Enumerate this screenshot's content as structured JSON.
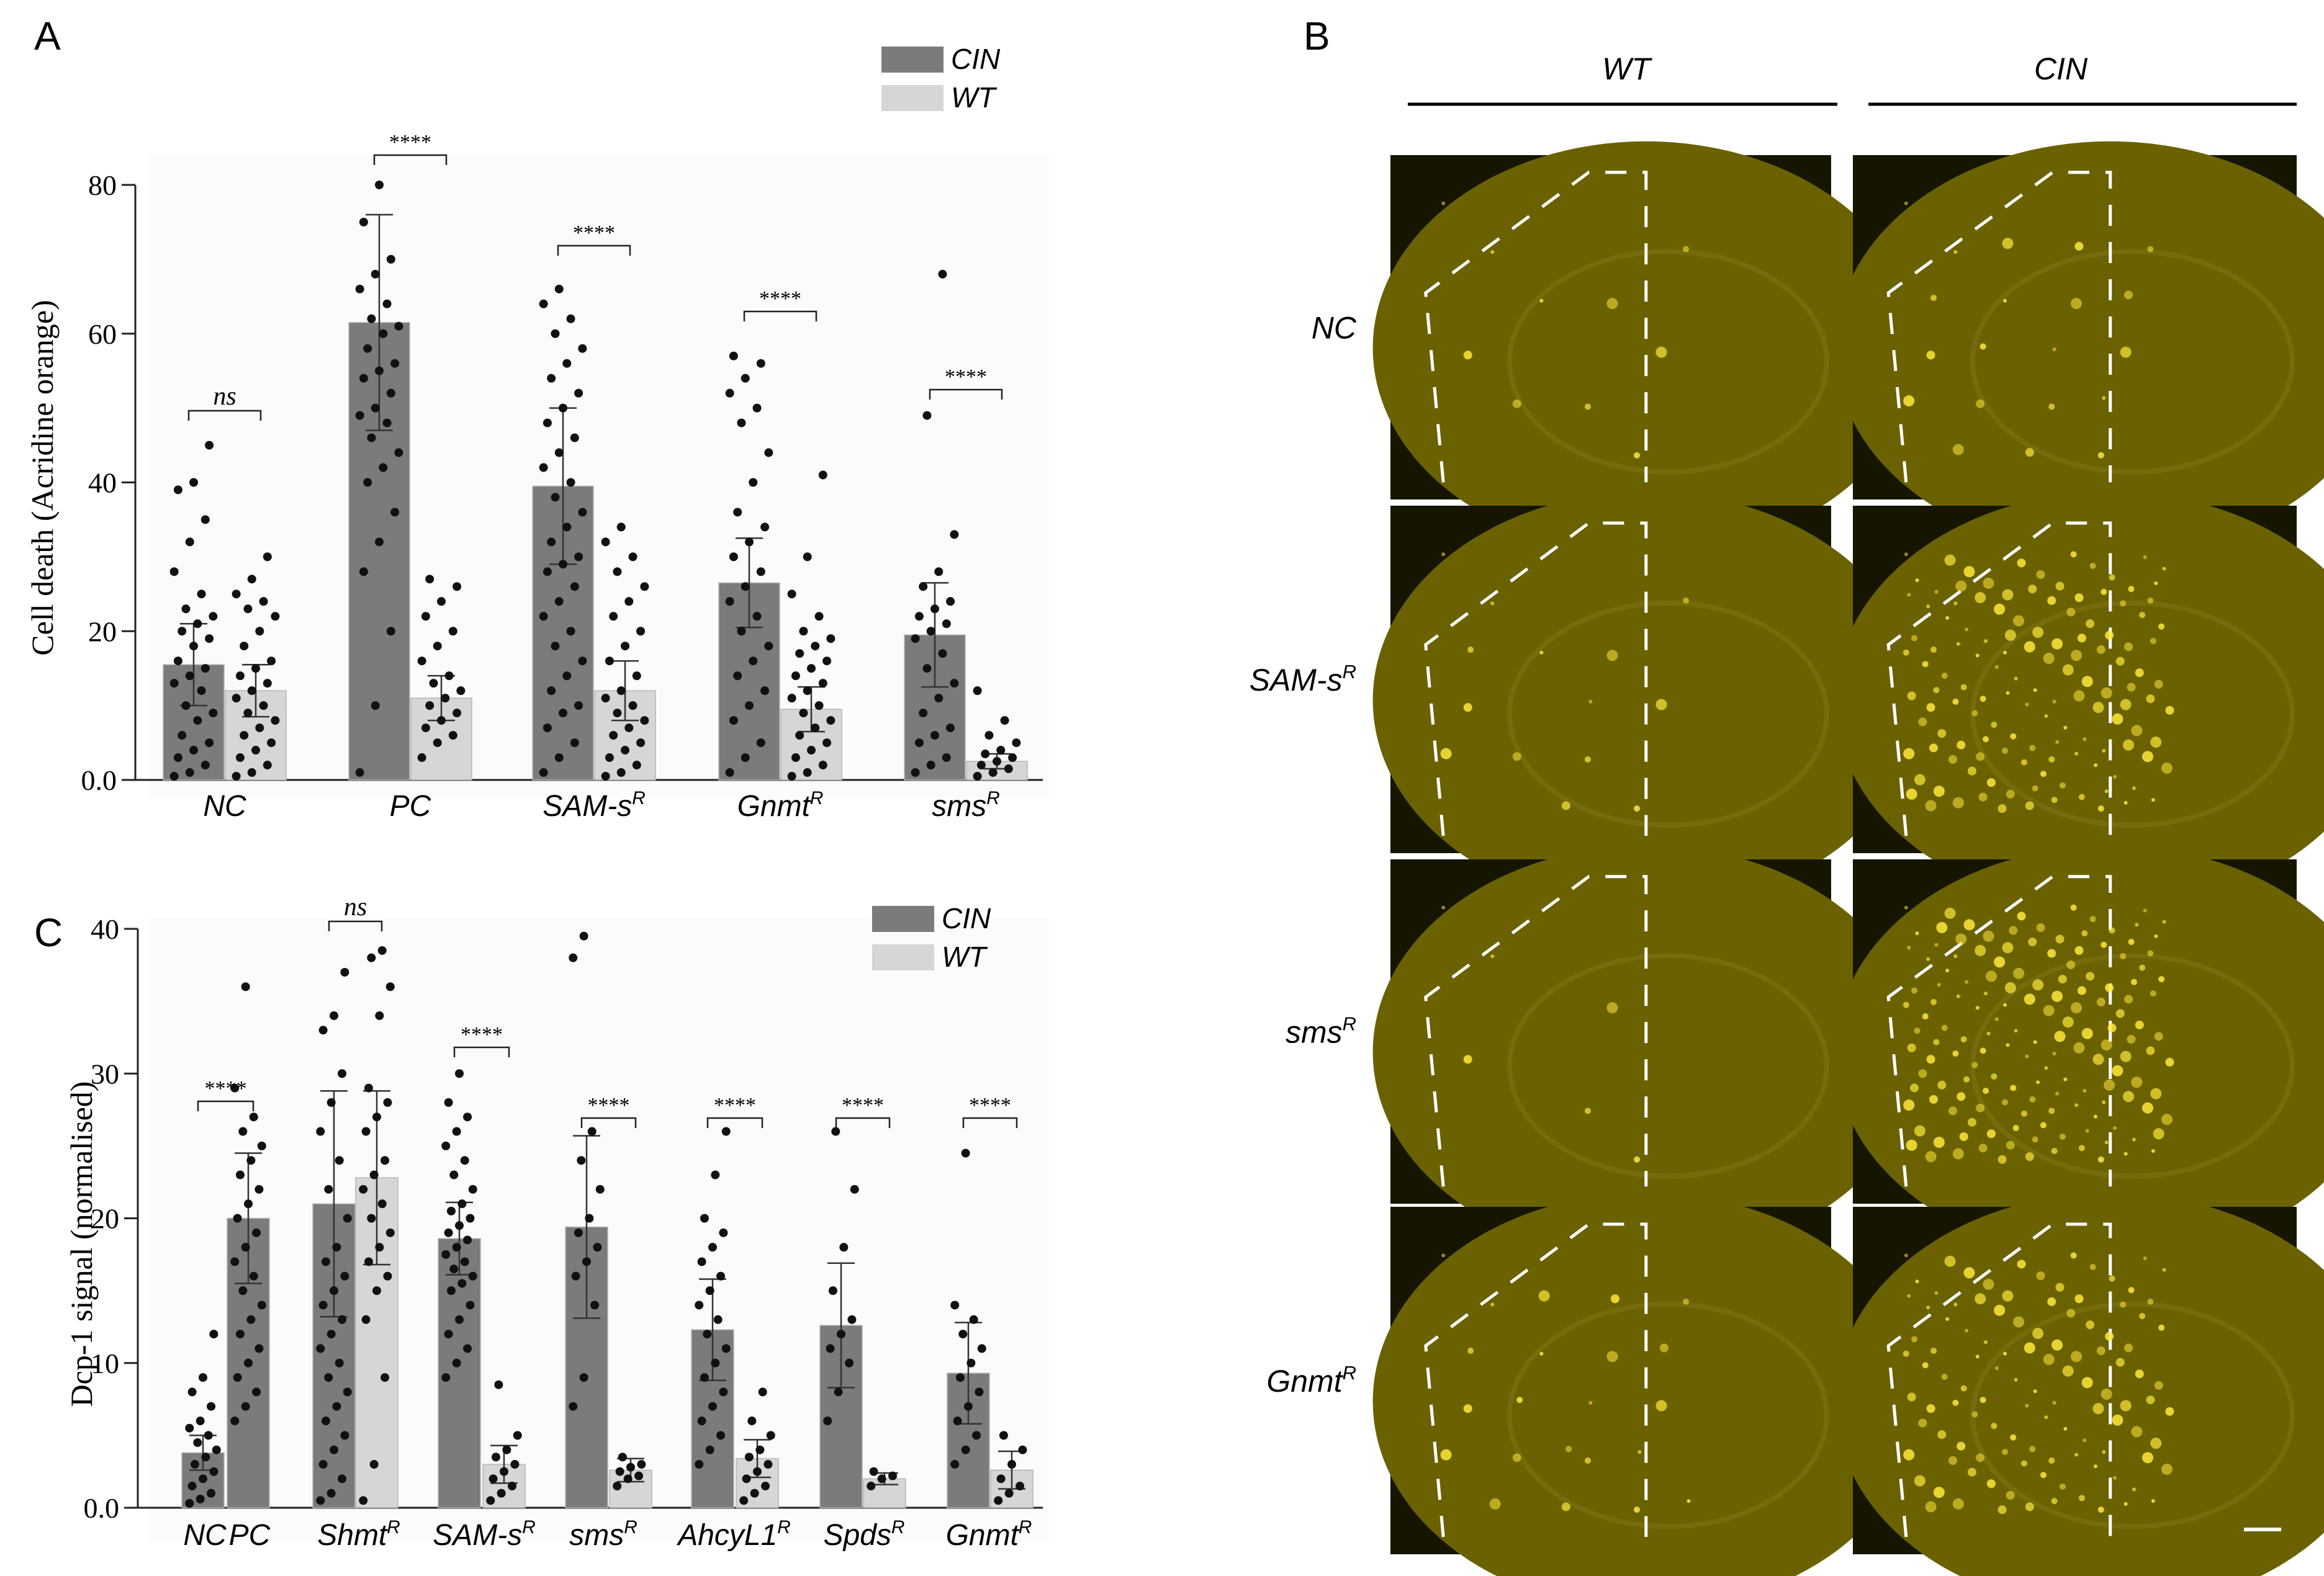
{
  "panels": {
    "a": {
      "letter": "A"
    },
    "b": {
      "letter": "B"
    },
    "c": {
      "letter": "C"
    }
  },
  "colors": {
    "cin": "#7b7b7d",
    "wt": "#d6d6d8",
    "fluor_bg": "#6a6200",
    "fluor_dark": "#151500",
    "spot": "#ffe83a"
  },
  "chart_data": [
    {
      "id": "A",
      "type": "bar",
      "ylabel": "Cell death (Acridine orange)",
      "ylim": [
        0,
        80
      ],
      "yticks": [
        "0.0",
        "20",
        "40",
        "60",
        "80"
      ],
      "legend": {
        "placement": "top-right",
        "entries": [
          "CIN",
          "WT"
        ]
      },
      "categories": [
        {
          "base": "NC",
          "sup": ""
        },
        {
          "base": "PC",
          "sup": ""
        },
        {
          "base": "SAM-s",
          "sup": "R"
        },
        {
          "base": "Gnmt",
          "sup": "R"
        },
        {
          "base": "sms",
          "sup": "R"
        }
      ],
      "series": [
        {
          "name": "CIN",
          "values": [
            15.5,
            61.5,
            39.5,
            26.5,
            19.5
          ],
          "errors": [
            5.5,
            14.5,
            10.5,
            6.0,
            7.0
          ]
        },
        {
          "name": "WT",
          "values": [
            12.0,
            11.0,
            12.0,
            9.5,
            2.5
          ],
          "errors": [
            3.5,
            3.0,
            4.0,
            3.0,
            1.0
          ]
        }
      ],
      "significance": [
        "ns",
        "****",
        "****",
        "****",
        "****"
      ],
      "points": {
        "CIN": [
          [
            0.5,
            1,
            2,
            3,
            4,
            5,
            6,
            8,
            9,
            10,
            12,
            13,
            14,
            15,
            16,
            18,
            19,
            20,
            21,
            22,
            23,
            25,
            28,
            32,
            35,
            39,
            40,
            45
          ],
          [
            1,
            10,
            20,
            28,
            32,
            36,
            40,
            42,
            44,
            46,
            48,
            49,
            50,
            52,
            54,
            55,
            56,
            58,
            60,
            61,
            62,
            64,
            66,
            68,
            70,
            75,
            80
          ],
          [
            1,
            3,
            5,
            7,
            9,
            10,
            12,
            14,
            16,
            18,
            20,
            22,
            24,
            26,
            28,
            29,
            30,
            32,
            34,
            36,
            38,
            40,
            42,
            44,
            46,
            48,
            50,
            52,
            54,
            56,
            58,
            60,
            62,
            64,
            66
          ],
          [
            1,
            3,
            5,
            8,
            10,
            12,
            14,
            16,
            18,
            20,
            22,
            24,
            26,
            28,
            30,
            32,
            34,
            36,
            40,
            44,
            48,
            50,
            52,
            54,
            56,
            57
          ],
          [
            1,
            2,
            3,
            5,
            6,
            7,
            9,
            11,
            13,
            15,
            17,
            19,
            20,
            21,
            22,
            23,
            24,
            26,
            28,
            33,
            49,
            68
          ]
        ],
        "WT": [
          [
            0.5,
            1,
            2,
            3,
            4,
            5,
            6,
            7,
            8,
            9,
            10,
            11,
            12,
            13,
            14,
            15,
            16,
            18,
            20,
            22,
            23,
            24,
            25,
            27,
            30
          ],
          [
            3,
            5,
            6,
            7,
            8,
            9,
            10,
            11,
            12,
            13,
            14,
            16,
            18,
            20,
            22,
            24,
            26,
            27
          ],
          [
            0.5,
            1,
            2,
            3,
            4,
            5,
            6,
            7,
            8,
            9,
            10,
            11,
            12,
            14,
            16,
            18,
            20,
            22,
            24,
            26,
            28,
            30,
            32,
            34
          ],
          [
            0.5,
            1,
            2,
            3,
            4,
            5,
            6,
            7,
            8,
            9,
            10,
            11,
            12,
            13,
            14,
            15,
            16,
            17,
            18,
            19,
            20,
            22,
            25,
            30,
            41
          ],
          [
            0.5,
            1,
            1.5,
            2,
            2.5,
            3,
            3.5,
            4,
            5,
            6,
            8,
            12
          ]
        ]
      }
    },
    {
      "id": "C",
      "type": "bar",
      "ylabel": "Dcp-1 signal (normalised)",
      "ylim": [
        0,
        40
      ],
      "yticks": [
        "0.0",
        "10",
        "20",
        "30",
        "40"
      ],
      "legend": {
        "placement": "top-right",
        "entries": [
          "CIN",
          "WT"
        ]
      },
      "categories": [
        {
          "base": "NC",
          "sup": ""
        },
        {
          "base": "PC",
          "sup": ""
        },
        {
          "base": "Shmt",
          "sup": "R"
        },
        {
          "base": "SAM-s",
          "sup": "R"
        },
        {
          "base": "sms",
          "sup": "R"
        },
        {
          "base": "AhcyL1",
          "sup": "R"
        },
        {
          "base": "Spds",
          "sup": "R"
        },
        {
          "base": "Gnmt",
          "sup": "R"
        }
      ],
      "bars": [
        {
          "cat": 0,
          "series": "CIN",
          "value": 3.8,
          "error": 1.2,
          "points": [
            0.3,
            0.6,
            1,
            1.5,
            2,
            2.5,
            3,
            3.5,
            4,
            4.5,
            5,
            5.5,
            6,
            7,
            8,
            9,
            12
          ]
        },
        {
          "cat": 1,
          "series": "CIN",
          "value": 20.0,
          "error": 4.5,
          "points": [
            6,
            7,
            8,
            9,
            10,
            11,
            12,
            13,
            14,
            15,
            16,
            17,
            18,
            19,
            20,
            21,
            22,
            23,
            24,
            25,
            26,
            27,
            29,
            36
          ]
        },
        {
          "cat": 2,
          "series": "CIN",
          "value": 21.0,
          "error": 7.8,
          "points": [
            0.5,
            1,
            2,
            3,
            4,
            5,
            6,
            7,
            8,
            9,
            10,
            11,
            12,
            13,
            14,
            15,
            16,
            17,
            18,
            20,
            22,
            24,
            26,
            28,
            30,
            33,
            34,
            37
          ]
        },
        {
          "cat": 2,
          "series": "WT",
          "value": 22.8,
          "error": 6.0,
          "points": [
            0.5,
            3,
            9,
            13,
            15,
            16,
            17,
            18,
            19,
            20,
            21,
            22,
            23,
            24,
            26,
            27,
            28,
            29,
            34,
            36,
            38,
            38.5
          ]
        },
        {
          "cat": 3,
          "series": "CIN",
          "value": 18.6,
          "error": 2.5,
          "points": [
            9,
            10,
            11,
            12,
            13,
            14,
            15,
            15.5,
            16,
            16.5,
            17,
            17.5,
            18,
            18.5,
            19,
            19.5,
            20,
            20.5,
            21,
            22,
            23,
            24,
            25,
            26,
            27,
            28,
            30
          ]
        },
        {
          "cat": 3,
          "series": "WT",
          "value": 3.0,
          "error": 1.3,
          "points": [
            0.5,
            1,
            1.5,
            2,
            2.5,
            3,
            3.5,
            4,
            5,
            8.5
          ]
        },
        {
          "cat": 4,
          "series": "CIN",
          "value": 19.4,
          "error": 6.3,
          "points": [
            7,
            9,
            14,
            16,
            17,
            18,
            19,
            20,
            22,
            24,
            26,
            38,
            39.5
          ]
        },
        {
          "cat": 4,
          "series": "WT",
          "value": 2.6,
          "error": 0.8,
          "points": [
            1.5,
            2,
            2.2,
            2.5,
            2.8,
            3,
            3.5
          ]
        },
        {
          "cat": 5,
          "series": "CIN",
          "value": 12.3,
          "error": 3.5,
          "points": [
            3,
            4,
            5,
            6,
            7,
            8,
            9,
            10,
            11,
            12,
            13,
            14,
            15,
            16,
            17,
            18,
            19,
            20,
            23,
            26
          ]
        },
        {
          "cat": 5,
          "series": "WT",
          "value": 3.4,
          "error": 1.3,
          "points": [
            0.5,
            1,
            1.5,
            2,
            2.5,
            3,
            3.5,
            4,
            5,
            6,
            8
          ]
        },
        {
          "cat": 6,
          "series": "CIN",
          "value": 12.6,
          "error": 4.3,
          "points": [
            6,
            8,
            10,
            11,
            12,
            13,
            15,
            18,
            22,
            26
          ]
        },
        {
          "cat": 6,
          "series": "WT",
          "value": 2.0,
          "error": 0.4,
          "points": [
            1.5,
            2,
            2.2,
            2.5
          ]
        },
        {
          "cat": 7,
          "series": "CIN",
          "value": 9.3,
          "error": 3.5,
          "points": [
            3,
            4,
            5,
            6,
            7,
            8,
            9,
            10,
            11,
            12,
            13,
            14,
            24.5
          ]
        },
        {
          "cat": 7,
          "series": "WT",
          "value": 2.6,
          "error": 1.3,
          "points": [
            0.5,
            1,
            1.5,
            2,
            3,
            4,
            5
          ]
        }
      ],
      "significance": [
        "****",
        "ns",
        "****",
        "****",
        "****",
        "****",
        "****"
      ]
    }
  ],
  "imaging": {
    "columns": [
      "WT",
      "CIN"
    ],
    "rows": [
      {
        "base": "NC",
        "sup": ""
      },
      {
        "base": "SAM-s",
        "sup": "R"
      },
      {
        "base": "sms",
        "sup": "R"
      },
      {
        "base": "Gnmt",
        "sup": "R"
      }
    ]
  }
}
